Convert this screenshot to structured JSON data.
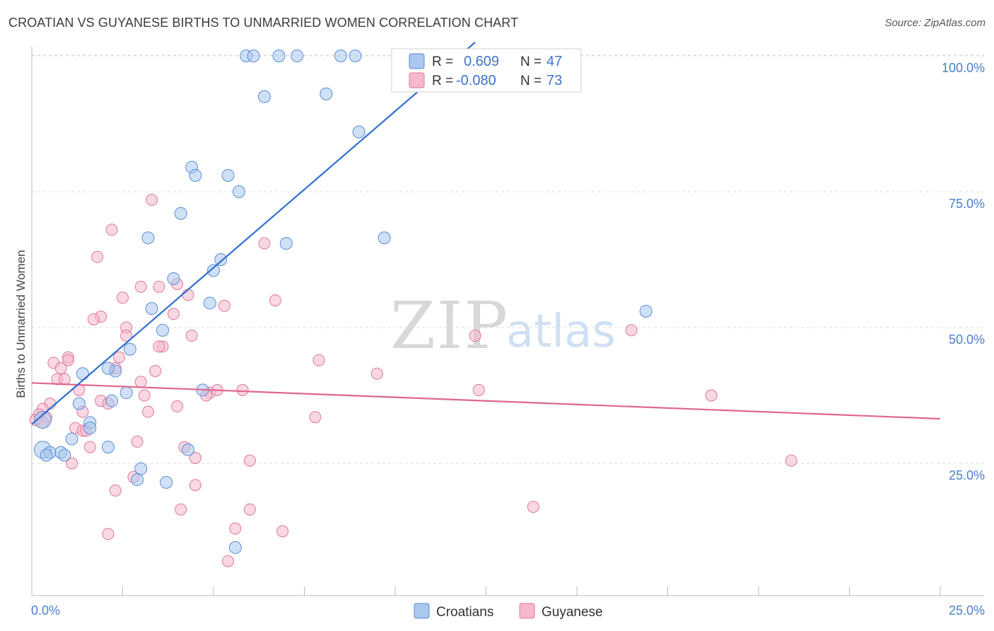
{
  "title": "CROATIAN VS GUYANESE BIRTHS TO UNMARRIED WOMEN CORRELATION CHART",
  "source": "Source: ZipAtlas.com",
  "watermark": {
    "zip": "ZIP",
    "atlas": "atlas"
  },
  "colors": {
    "croatians_fill": "#a9c7ef",
    "croatians_stroke": "#5a8ed6",
    "croatians_line": "#2f6fd0",
    "guyanese_fill": "#f5b8cc",
    "guyanese_stroke": "#e07799",
    "guyanese_line": "#e0668f",
    "grid": "#dcdcdc",
    "tick_text": "#4a7fd0"
  },
  "legend_box": {
    "rows": [
      {
        "r_label": "R =",
        "r_value": "0.609",
        "n_label": "N =",
        "n_value": "47",
        "series": "Croatians"
      },
      {
        "r_label": "R =",
        "r_value": "-0.080",
        "n_label": "N =",
        "n_value": "73",
        "series": "Guyanese"
      }
    ]
  },
  "chart_data": {
    "type": "scatter",
    "title": "CROATIAN VS GUYANESE BIRTHS TO UNMARRIED WOMEN CORRELATION CHART",
    "xlabel": "",
    "ylabel": "Births to Unmarried Women",
    "xlim": [
      0,
      25
    ],
    "ylim": [
      0,
      105
    ],
    "x_tick_labels": [
      "0.0%",
      "25.0%"
    ],
    "y_ticks": [
      25,
      50,
      75,
      100
    ],
    "y_tick_labels": [
      "25.0%",
      "50.0%",
      "75.0%",
      "100.0%"
    ],
    "grid": true,
    "legend_position": "bottom-center",
    "series": [
      {
        "name": "Croatians",
        "r": 0.609,
        "n": 47,
        "trend": {
          "x": [
            0.0,
            12.2
          ],
          "y": [
            32.2,
            102.5
          ]
        },
        "points": [
          [
            5.9,
            100
          ],
          [
            6.1,
            100
          ],
          [
            6.8,
            100
          ],
          [
            7.3,
            100
          ],
          [
            8.5,
            100
          ],
          [
            8.9,
            100
          ],
          [
            6.4,
            92.5
          ],
          [
            8.1,
            93
          ],
          [
            9.0,
            86
          ],
          [
            4.4,
            79.5
          ],
          [
            4.5,
            78
          ],
          [
            5.4,
            78
          ],
          [
            5.7,
            75
          ],
          [
            4.1,
            71
          ],
          [
            3.2,
            66.5
          ],
          [
            7.0,
            65.5
          ],
          [
            9.7,
            66.5
          ],
          [
            5.2,
            62.5
          ],
          [
            5.0,
            60.5
          ],
          [
            3.9,
            59
          ],
          [
            3.3,
            53.5
          ],
          [
            4.9,
            54.5
          ],
          [
            3.6,
            49.5
          ],
          [
            2.7,
            46
          ],
          [
            1.4,
            41.5
          ],
          [
            2.3,
            42
          ],
          [
            2.1,
            42.5
          ],
          [
            16.9,
            53
          ],
          [
            4.7,
            38.5
          ],
          [
            2.6,
            38
          ],
          [
            1.3,
            36
          ],
          [
            2.2,
            36.5
          ],
          [
            0.3,
            33
          ],
          [
            1.6,
            32.5
          ],
          [
            1.6,
            31.5
          ],
          [
            1.1,
            29.5
          ],
          [
            2.1,
            28
          ],
          [
            0.3,
            27.5
          ],
          [
            0.5,
            27
          ],
          [
            0.8,
            27
          ],
          [
            0.9,
            26.5
          ],
          [
            0.4,
            26.5
          ],
          [
            4.3,
            27.5
          ],
          [
            3.0,
            24
          ],
          [
            2.9,
            22
          ],
          [
            3.7,
            21.5
          ],
          [
            5.6,
            9.5
          ]
        ]
      },
      {
        "name": "Guyanese",
        "r": -0.08,
        "n": 73,
        "trend": {
          "x": [
            0.0,
            25.0
          ],
          "y": [
            39.8,
            33.2
          ]
        },
        "points": [
          [
            3.3,
            73.5
          ],
          [
            2.2,
            68
          ],
          [
            6.4,
            65.5
          ],
          [
            1.8,
            63
          ],
          [
            4.0,
            58
          ],
          [
            3.0,
            57.5
          ],
          [
            3.5,
            57.5
          ],
          [
            4.3,
            56
          ],
          [
            2.5,
            55.5
          ],
          [
            5.3,
            54
          ],
          [
            6.7,
            55
          ],
          [
            1.9,
            52
          ],
          [
            1.7,
            51.5
          ],
          [
            3.9,
            52.5
          ],
          [
            2.6,
            50
          ],
          [
            2.6,
            48.5
          ],
          [
            4.4,
            48.5
          ],
          [
            12.2,
            48.5
          ],
          [
            16.5,
            49.5
          ],
          [
            3.6,
            46.5
          ],
          [
            3.5,
            46.5
          ],
          [
            1.0,
            44.5
          ],
          [
            0.6,
            43.5
          ],
          [
            1.0,
            44
          ],
          [
            2.4,
            44.5
          ],
          [
            7.9,
            44
          ],
          [
            0.8,
            42.5
          ],
          [
            2.3,
            42.5
          ],
          [
            3.4,
            42
          ],
          [
            9.5,
            41.5
          ],
          [
            0.7,
            40.5
          ],
          [
            0.9,
            40.5
          ],
          [
            3.0,
            40
          ],
          [
            1.3,
            38.5
          ],
          [
            4.9,
            38
          ],
          [
            5.1,
            38.5
          ],
          [
            5.8,
            38.5
          ],
          [
            12.3,
            38.5
          ],
          [
            3.1,
            37.5
          ],
          [
            4.8,
            37.5
          ],
          [
            18.7,
            37.5
          ],
          [
            1.9,
            36.5
          ],
          [
            2.1,
            36
          ],
          [
            0.5,
            36
          ],
          [
            0.3,
            35
          ],
          [
            3.2,
            34.5
          ],
          [
            4.0,
            35.5
          ],
          [
            1.4,
            34.5
          ],
          [
            0.2,
            34
          ],
          [
            0.4,
            33.5
          ],
          [
            7.8,
            33.5
          ],
          [
            0.1,
            33
          ],
          [
            0.3,
            32.5
          ],
          [
            1.2,
            31.5
          ],
          [
            1.4,
            31
          ],
          [
            1.5,
            31
          ],
          [
            2.9,
            29
          ],
          [
            4.2,
            28
          ],
          [
            1.6,
            28
          ],
          [
            4.5,
            26
          ],
          [
            1.1,
            25
          ],
          [
            6.0,
            25.5
          ],
          [
            20.9,
            25.5
          ],
          [
            2.8,
            22.5
          ],
          [
            4.5,
            21
          ],
          [
            2.3,
            20
          ],
          [
            4.1,
            16.5
          ],
          [
            6.0,
            16.5
          ],
          [
            13.8,
            17
          ],
          [
            2.1,
            12
          ],
          [
            5.6,
            13
          ],
          [
            6.9,
            12.5
          ],
          [
            5.4,
            7
          ]
        ]
      }
    ]
  }
}
